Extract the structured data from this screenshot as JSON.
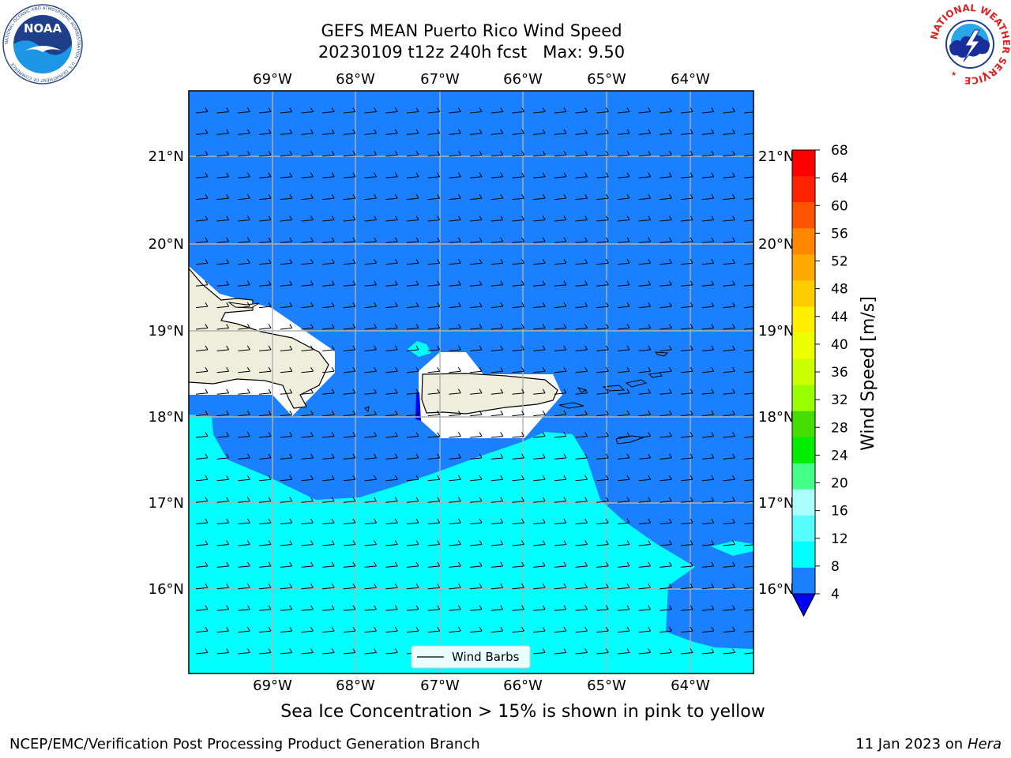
{
  "title": {
    "line1": "GEFS MEAN Puerto Rico Wind Speed",
    "line2": "20230109 t12z 240h fcst   Max: 9.50"
  },
  "map": {
    "lon_ticks": [
      "69°W",
      "68°W",
      "67°W",
      "66°W",
      "65°W",
      "64°W"
    ],
    "lat_ticks": [
      "21°N",
      "20°N",
      "19°N",
      "18°N",
      "17°N",
      "16°N"
    ],
    "lon_range": [
      -70,
      -63.25
    ],
    "lat_range": [
      15.0,
      21.75
    ],
    "legend_label": "Wind Barbs",
    "colors": {
      "ocean": "#1a80ff",
      "light_band": "#00ffff",
      "land": "#efeedc",
      "mask": "#ffffff"
    }
  },
  "colorbar": {
    "label": "Wind Speed [m/s]",
    "ticks": [
      "68",
      "64",
      "60",
      "56",
      "52",
      "48",
      "44",
      "40",
      "36",
      "32",
      "28",
      "24",
      "20",
      "16",
      "12",
      "8",
      "4"
    ],
    "colors": [
      "#ff0000",
      "#ff2200",
      "#ff5500",
      "#ff8800",
      "#ffaa00",
      "#ffcc00",
      "#ffee00",
      "#eeff00",
      "#ccff00",
      "#99ff00",
      "#44dd00",
      "#00ee00",
      "#44ff88",
      "#aaffff",
      "#55ffff",
      "#00ffff",
      "#1a80ff"
    ],
    "under_color": "#0000ff"
  },
  "note": "Sea Ice Concentration > 15% is shown in pink to yellow",
  "footer": {
    "left": "NCEP/EMC/Verification Post Processing Product Generation Branch",
    "right_prefix": "11 Jan 2023 on ",
    "right_machine": "Hera"
  },
  "logos": {
    "left": "NOAA",
    "left_ring": "NATIONAL OCEANIC AND ATMOSPHERIC ADMINISTRATION · U.S. DEPARTMENT OF COMMERCE",
    "right_ring": "NATIONAL WEATHER SERVICE"
  }
}
